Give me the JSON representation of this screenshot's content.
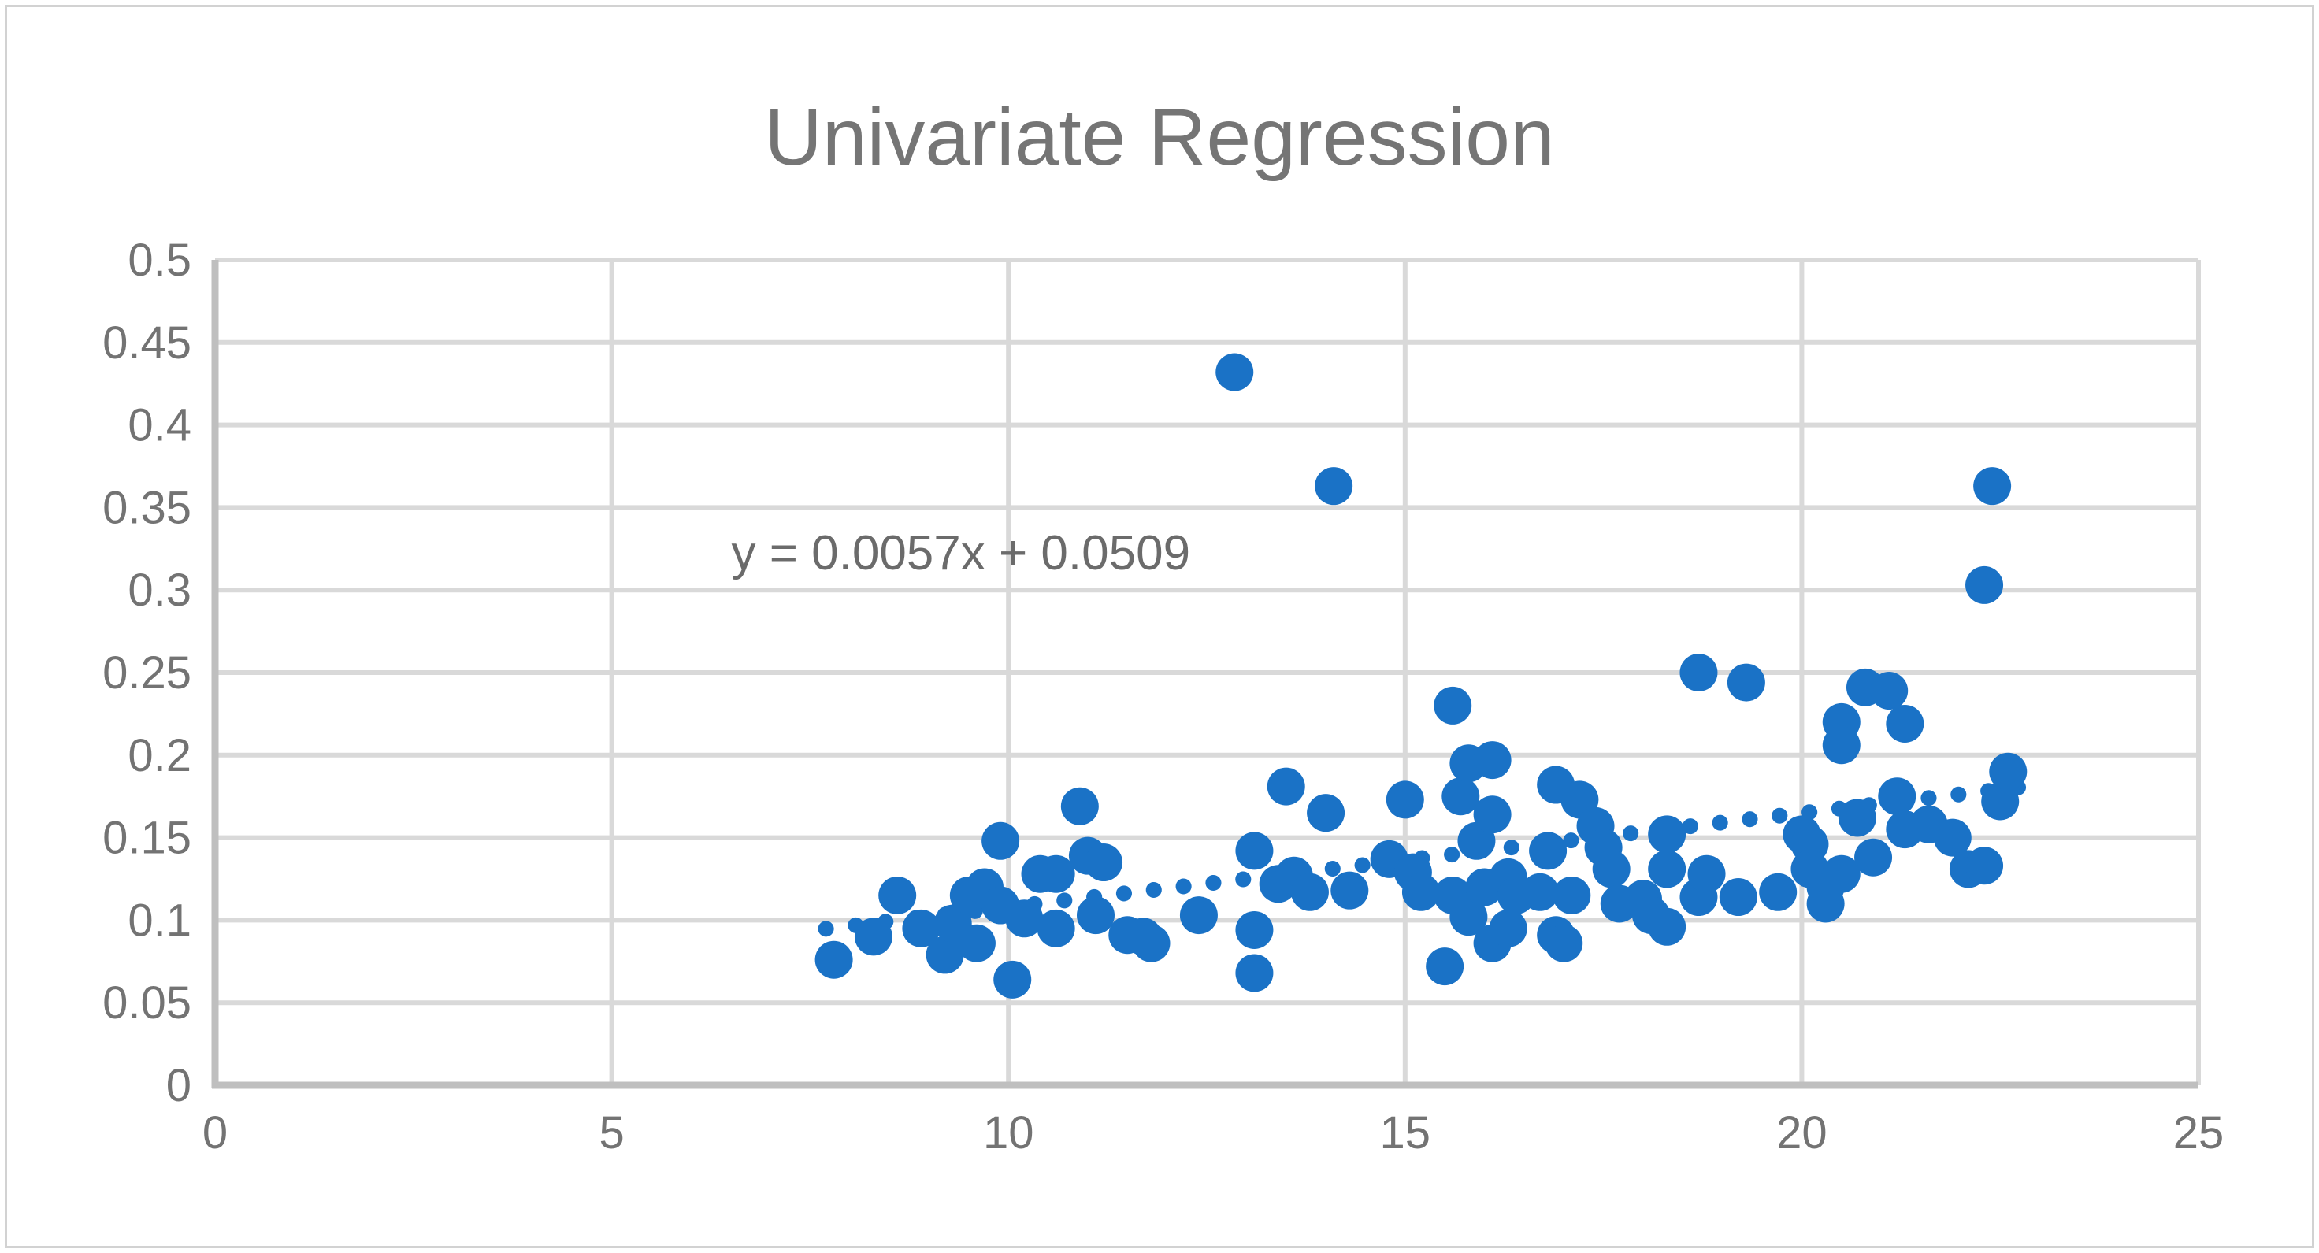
{
  "colors": {
    "point": "#1A72C6",
    "trendline": "#1A72C6",
    "grid": "#D9D9D9",
    "axis": "#BFBFBF",
    "tick": "#737373",
    "title": "#757575",
    "annotation": "#6B6B6B",
    "frame_border": "#D2D2D2",
    "background": "#FFFFFF"
  },
  "chart_data": {
    "type": "scatter",
    "title": "Univariate Regression",
    "xlabel": "",
    "ylabel": "",
    "xlim": [
      0,
      25
    ],
    "ylim": [
      0,
      0.5
    ],
    "x_ticks": [
      "0",
      "5",
      "10",
      "15",
      "20",
      "25"
    ],
    "y_ticks": [
      "0",
      "0.05",
      "0.1",
      "0.15",
      "0.2",
      "0.25",
      "0.3",
      "0.35",
      "0.4",
      "0.45",
      "0.5"
    ],
    "grid": true,
    "legend": false,
    "annotation": {
      "text": "y = 0.0057x + 0.0509",
      "x": 9.4,
      "y": 0.323
    },
    "trendline": {
      "equation": "y = 0.0057x + 0.0509",
      "slope": 0.0057,
      "intercept": 0.0509,
      "x_start": 7.7,
      "x_end": 22.8,
      "style": "dotted"
    },
    "points": [
      [
        7.8,
        0.076
      ],
      [
        8.3,
        0.09
      ],
      [
        8.6,
        0.115
      ],
      [
        8.9,
        0.095
      ],
      [
        9.2,
        0.079
      ],
      [
        9.3,
        0.098
      ],
      [
        9.5,
        0.115
      ],
      [
        9.6,
        0.086
      ],
      [
        9.7,
        0.12
      ],
      [
        9.9,
        0.109
      ],
      [
        9.9,
        0.148
      ],
      [
        10.05,
        0.064
      ],
      [
        10.2,
        0.101
      ],
      [
        10.4,
        0.128
      ],
      [
        10.6,
        0.128
      ],
      [
        10.6,
        0.095
      ],
      [
        10.9,
        0.169
      ],
      [
        11.0,
        0.139
      ],
      [
        11.1,
        0.103
      ],
      [
        11.2,
        0.135
      ],
      [
        11.5,
        0.091
      ],
      [
        11.7,
        0.09
      ],
      [
        11.8,
        0.086
      ],
      [
        12.4,
        0.103
      ],
      [
        12.85,
        0.432
      ],
      [
        13.1,
        0.142
      ],
      [
        13.1,
        0.094
      ],
      [
        13.1,
        0.068
      ],
      [
        13.4,
        0.122
      ],
      [
        13.5,
        0.181
      ],
      [
        13.6,
        0.127
      ],
      [
        13.8,
        0.117
      ],
      [
        14.0,
        0.165
      ],
      [
        14.1,
        0.363
      ],
      [
        14.3,
        0.118
      ],
      [
        14.8,
        0.137
      ],
      [
        15.0,
        0.173
      ],
      [
        15.1,
        0.129
      ],
      [
        15.2,
        0.117
      ],
      [
        15.5,
        0.072
      ],
      [
        15.6,
        0.23
      ],
      [
        15.6,
        0.115
      ],
      [
        15.7,
        0.175
      ],
      [
        15.8,
        0.195
      ],
      [
        15.8,
        0.102
      ],
      [
        15.9,
        0.148
      ],
      [
        16.0,
        0.12
      ],
      [
        16.1,
        0.197
      ],
      [
        16.1,
        0.164
      ],
      [
        16.1,
        0.086
      ],
      [
        16.3,
        0.126
      ],
      [
        16.3,
        0.095
      ],
      [
        16.4,
        0.115
      ],
      [
        16.7,
        0.117
      ],
      [
        16.8,
        0.142
      ],
      [
        16.9,
        0.182
      ],
      [
        16.9,
        0.091
      ],
      [
        17.0,
        0.086
      ],
      [
        17.1,
        0.115
      ],
      [
        17.2,
        0.173
      ],
      [
        17.4,
        0.157
      ],
      [
        17.5,
        0.144
      ],
      [
        17.6,
        0.131
      ],
      [
        17.7,
        0.11
      ],
      [
        18.0,
        0.113
      ],
      [
        18.1,
        0.103
      ],
      [
        18.3,
        0.152
      ],
      [
        18.3,
        0.131
      ],
      [
        18.3,
        0.096
      ],
      [
        18.7,
        0.25
      ],
      [
        18.7,
        0.114
      ],
      [
        18.8,
        0.128
      ],
      [
        19.2,
        0.114
      ],
      [
        19.3,
        0.244
      ],
      [
        19.7,
        0.117
      ],
      [
        20.0,
        0.152
      ],
      [
        20.1,
        0.146
      ],
      [
        20.1,
        0.131
      ],
      [
        20.3,
        0.12
      ],
      [
        20.3,
        0.11
      ],
      [
        20.5,
        0.22
      ],
      [
        20.5,
        0.206
      ],
      [
        20.5,
        0.128
      ],
      [
        20.7,
        0.162
      ],
      [
        20.8,
        0.241
      ],
      [
        20.9,
        0.138
      ],
      [
        21.1,
        0.239
      ],
      [
        21.2,
        0.175
      ],
      [
        21.3,
        0.219
      ],
      [
        21.3,
        0.155
      ],
      [
        21.6,
        0.158
      ],
      [
        21.9,
        0.15
      ],
      [
        22.1,
        0.131
      ],
      [
        22.3,
        0.303
      ],
      [
        22.3,
        0.133
      ],
      [
        22.4,
        0.363
      ],
      [
        22.5,
        0.172
      ],
      [
        22.6,
        0.19
      ]
    ]
  }
}
